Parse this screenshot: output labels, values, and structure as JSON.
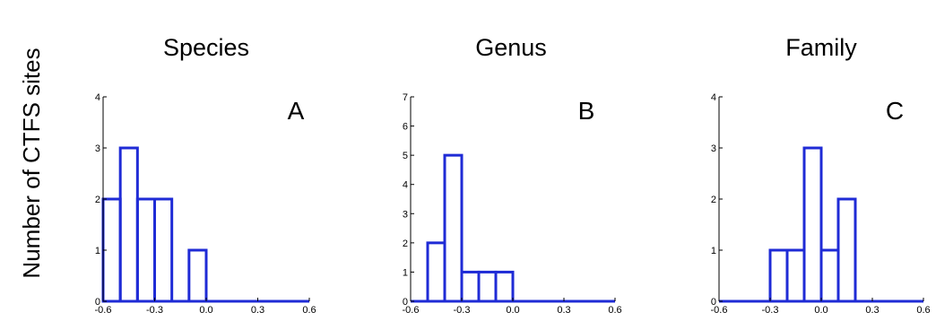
{
  "ylabel": "Number of CTFS sites",
  "chart_data": [
    {
      "type": "bar",
      "title": "Species",
      "panel_label": "A",
      "bin_edges": [
        -0.6,
        -0.5,
        -0.4,
        -0.3,
        -0.2,
        -0.1,
        0.0,
        0.1,
        0.2,
        0.3,
        0.4,
        0.5,
        0.6
      ],
      "values": [
        2,
        3,
        2,
        2,
        0,
        1,
        0,
        0,
        0,
        0,
        0,
        0
      ],
      "xlim": [
        -0.6,
        0.6
      ],
      "ylim": [
        0,
        4
      ],
      "xticks": [
        "-0.6",
        "-0.3",
        "0.0",
        "0.3",
        "0.6"
      ],
      "yticks": [
        "0",
        "1",
        "2",
        "3",
        "4"
      ],
      "color": "#1f2bd6"
    },
    {
      "type": "bar",
      "title": "Genus",
      "panel_label": "B",
      "bin_edges": [
        -0.6,
        -0.5,
        -0.4,
        -0.3,
        -0.2,
        -0.1,
        0.0,
        0.1,
        0.2,
        0.3,
        0.4,
        0.5,
        0.6
      ],
      "values": [
        0,
        2,
        5,
        1,
        1,
        1,
        0,
        0,
        0,
        0,
        0,
        0
      ],
      "xlim": [
        -0.6,
        0.6
      ],
      "ylim": [
        0,
        7
      ],
      "xticks": [
        "-0.6",
        "-0.3",
        "0.0",
        "0.3",
        "0.6"
      ],
      "yticks": [
        "0",
        "1",
        "2",
        "3",
        "4",
        "5",
        "6",
        "7"
      ],
      "color": "#1f2bd6"
    },
    {
      "type": "bar",
      "title": "Family",
      "panel_label": "C",
      "bin_edges": [
        -0.6,
        -0.5,
        -0.4,
        -0.3,
        -0.2,
        -0.1,
        0.0,
        0.1,
        0.2,
        0.3,
        0.4,
        0.5,
        0.6
      ],
      "values": [
        0,
        0,
        0,
        1,
        1,
        3,
        1,
        2,
        0,
        0,
        0,
        0
      ],
      "xlim": [
        -0.6,
        0.6
      ],
      "ylim": [
        0,
        4
      ],
      "xticks": [
        "-0.6",
        "-0.3",
        "0.0",
        "0.3",
        "0.6"
      ],
      "yticks": [
        "0",
        "1",
        "2",
        "3",
        "4"
      ],
      "color": "#1f2bd6"
    }
  ]
}
